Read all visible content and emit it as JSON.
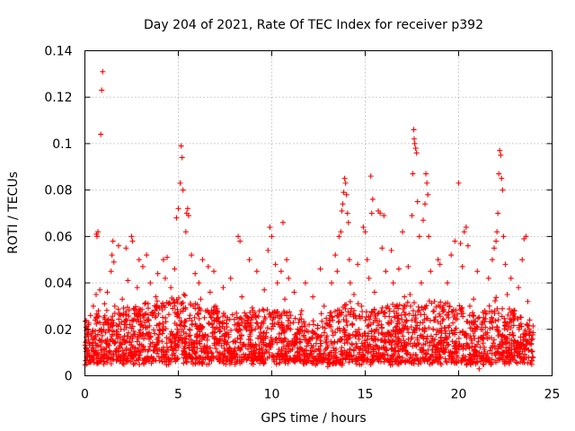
{
  "chart_data": {
    "type": "scatter",
    "title": "Day 204 of 2021, Rate Of TEC Index for receiver p392",
    "xlabel": "GPS time / hours",
    "ylabel": "ROTI / TECUs",
    "xlim": [
      0,
      25
    ],
    "ylim": [
      0,
      0.14
    ],
    "x_ticks": [
      0,
      5,
      10,
      15,
      20,
      25
    ],
    "x_tick_labels": [
      "0",
      "5",
      "10",
      "15",
      "20",
      "25"
    ],
    "y_ticks": [
      0,
      0.02,
      0.04,
      0.06,
      0.08,
      0.1,
      0.12,
      0.14
    ],
    "y_tick_labels": [
      "0",
      "0.02",
      "0.04",
      "0.06",
      "0.08",
      "0.1",
      "0.12",
      "0.14"
    ],
    "grid": true,
    "marker": "+",
    "color": "#ff0000",
    "series": [
      {
        "name": "ROTI",
        "points": [
          [
            0.05,
            0.012
          ],
          [
            0.1,
            0.018
          ],
          [
            0.15,
            0.009
          ],
          [
            0.2,
            0.022
          ],
          [
            0.25,
            0.014
          ],
          [
            0.3,
            0.026
          ],
          [
            0.35,
            0.011
          ],
          [
            0.4,
            0.019
          ],
          [
            0.45,
            0.03
          ],
          [
            0.5,
            0.016
          ],
          [
            0.55,
            0.024
          ],
          [
            0.6,
            0.035
          ],
          [
            0.62,
            0.061
          ],
          [
            0.65,
            0.06
          ],
          [
            0.7,
            0.062
          ],
          [
            0.72,
            0.028
          ],
          [
            0.8,
            0.037
          ],
          [
            0.85,
            0.104
          ],
          [
            0.9,
            0.123
          ],
          [
            0.95,
            0.131
          ],
          [
            1.0,
            0.022
          ],
          [
            1.05,
            0.031
          ],
          [
            1.1,
            0.015
          ],
          [
            1.2,
            0.036
          ],
          [
            1.25,
            0.02
          ],
          [
            1.3,
            0.013
          ],
          [
            1.4,
            0.045
          ],
          [
            1.45,
            0.052
          ],
          [
            1.5,
            0.058
          ],
          [
            1.55,
            0.049
          ],
          [
            1.6,
            0.03
          ],
          [
            1.7,
            0.018
          ],
          [
            1.8,
            0.056
          ],
          [
            1.85,
            0.027
          ],
          [
            1.9,
            0.012
          ],
          [
            2.0,
            0.033
          ],
          [
            2.1,
            0.02
          ],
          [
            2.2,
            0.055
          ],
          [
            2.3,
            0.041
          ],
          [
            2.4,
            0.016
          ],
          [
            2.5,
            0.06
          ],
          [
            2.55,
            0.058
          ],
          [
            2.6,
            0.029
          ],
          [
            2.7,
            0.012
          ],
          [
            2.8,
            0.038
          ],
          [
            2.9,
            0.05
          ],
          [
            3.0,
            0.022
          ],
          [
            3.1,
            0.047
          ],
          [
            3.2,
            0.031
          ],
          [
            3.3,
            0.052
          ],
          [
            3.4,
            0.018
          ],
          [
            3.5,
            0.04
          ],
          [
            3.6,
            0.026
          ],
          [
            3.7,
            0.011
          ],
          [
            3.8,
            0.034
          ],
          [
            3.9,
            0.044
          ],
          [
            4.0,
            0.02
          ],
          [
            4.1,
            0.03
          ],
          [
            4.2,
            0.05
          ],
          [
            4.3,
            0.042
          ],
          [
            4.4,
            0.051
          ],
          [
            4.5,
            0.016
          ],
          [
            4.6,
            0.038
          ],
          [
            4.7,
            0.029
          ],
          [
            4.8,
            0.046
          ],
          [
            4.9,
            0.068
          ],
          [
            5.0,
            0.072
          ],
          [
            5.05,
            0.025
          ],
          [
            5.1,
            0.083
          ],
          [
            5.15,
            0.099
          ],
          [
            5.2,
            0.094
          ],
          [
            5.25,
            0.08
          ],
          [
            5.3,
            0.035
          ],
          [
            5.4,
            0.062
          ],
          [
            5.45,
            0.07
          ],
          [
            5.5,
            0.072
          ],
          [
            5.55,
            0.069
          ],
          [
            5.6,
            0.02
          ],
          [
            5.7,
            0.052
          ],
          [
            5.8,
            0.03
          ],
          [
            5.9,
            0.044
          ],
          [
            6.0,
            0.018
          ],
          [
            6.1,
            0.04
          ],
          [
            6.2,
            0.033
          ],
          [
            6.3,
            0.05
          ],
          [
            6.4,
            0.025
          ],
          [
            6.5,
            0.012
          ],
          [
            6.6,
            0.047
          ],
          [
            6.7,
            0.036
          ],
          [
            6.8,
            0.022
          ],
          [
            6.9,
            0.045
          ],
          [
            7.0,
            0.03
          ],
          [
            7.2,
            0.015
          ],
          [
            7.4,
            0.038
          ],
          [
            7.6,
            0.024
          ],
          [
            7.8,
            0.042
          ],
          [
            8.0,
            0.011
          ],
          [
            8.2,
            0.06
          ],
          [
            8.3,
            0.058
          ],
          [
            8.4,
            0.034
          ],
          [
            8.6,
            0.021
          ],
          [
            8.8,
            0.05
          ],
          [
            9.0,
            0.028
          ],
          [
            9.2,
            0.045
          ],
          [
            9.4,
            0.016
          ],
          [
            9.6,
            0.037
          ],
          [
            9.8,
            0.054
          ],
          [
            9.9,
            0.064
          ],
          [
            10.0,
            0.06
          ],
          [
            10.1,
            0.025
          ],
          [
            10.2,
            0.048
          ],
          [
            10.3,
            0.04
          ],
          [
            10.4,
            0.018
          ],
          [
            10.5,
            0.045
          ],
          [
            10.6,
            0.066
          ],
          [
            10.7,
            0.033
          ],
          [
            10.8,
            0.05
          ],
          [
            10.9,
            0.042
          ],
          [
            11.0,
            0.02
          ],
          [
            11.2,
            0.036
          ],
          [
            11.4,
            0.012
          ],
          [
            11.6,
            0.028
          ],
          [
            11.8,
            0.04
          ],
          [
            12.0,
            0.022
          ],
          [
            12.2,
            0.034
          ],
          [
            12.4,
            0.016
          ],
          [
            12.6,
            0.046
          ],
          [
            12.8,
            0.03
          ],
          [
            13.0,
            0.013
          ],
          [
            13.2,
            0.04
          ],
          [
            13.4,
            0.052
          ],
          [
            13.5,
            0.045
          ],
          [
            13.6,
            0.06
          ],
          [
            13.7,
            0.062
          ],
          [
            13.75,
            0.071
          ],
          [
            13.8,
            0.074
          ],
          [
            13.85,
            0.079
          ],
          [
            13.9,
            0.085
          ],
          [
            13.95,
            0.083
          ],
          [
            14.0,
            0.078
          ],
          [
            14.05,
            0.07
          ],
          [
            14.1,
            0.066
          ],
          [
            14.15,
            0.05
          ],
          [
            14.2,
            0.04
          ],
          [
            14.3,
            0.022
          ],
          [
            14.4,
            0.035
          ],
          [
            14.5,
            0.012
          ],
          [
            14.6,
            0.048
          ],
          [
            14.8,
            0.03
          ],
          [
            14.9,
            0.064
          ],
          [
            15.0,
            0.062
          ],
          [
            15.1,
            0.05
          ],
          [
            15.2,
            0.042
          ],
          [
            15.3,
            0.086
          ],
          [
            15.35,
            0.07
          ],
          [
            15.4,
            0.076
          ],
          [
            15.5,
            0.036
          ],
          [
            15.6,
            0.02
          ],
          [
            15.7,
            0.071
          ],
          [
            15.8,
            0.07
          ],
          [
            15.9,
            0.055
          ],
          [
            16.0,
            0.069
          ],
          [
            16.1,
            0.045
          ],
          [
            16.2,
            0.03
          ],
          [
            16.4,
            0.054
          ],
          [
            16.5,
            0.04
          ],
          [
            16.6,
            0.018
          ],
          [
            16.8,
            0.046
          ],
          [
            17.0,
            0.062
          ],
          [
            17.1,
            0.034
          ],
          [
            17.2,
            0.024
          ],
          [
            17.3,
            0.047
          ],
          [
            17.4,
            0.035
          ],
          [
            17.5,
            0.069
          ],
          [
            17.55,
            0.087
          ],
          [
            17.6,
            0.106
          ],
          [
            17.62,
            0.102
          ],
          [
            17.65,
            0.1
          ],
          [
            17.7,
            0.098
          ],
          [
            17.75,
            0.096
          ],
          [
            17.8,
            0.075
          ],
          [
            17.9,
            0.06
          ],
          [
            18.0,
            0.04
          ],
          [
            18.1,
            0.067
          ],
          [
            18.2,
            0.074
          ],
          [
            18.25,
            0.087
          ],
          [
            18.3,
            0.083
          ],
          [
            18.35,
            0.078
          ],
          [
            18.4,
            0.06
          ],
          [
            18.5,
            0.045
          ],
          [
            18.7,
            0.032
          ],
          [
            18.9,
            0.05
          ],
          [
            19.0,
            0.048
          ],
          [
            19.2,
            0.028
          ],
          [
            19.4,
            0.04
          ],
          [
            19.6,
            0.052
          ],
          [
            19.8,
            0.058
          ],
          [
            20.0,
            0.083
          ],
          [
            20.1,
            0.057
          ],
          [
            20.2,
            0.047
          ],
          [
            20.3,
            0.062
          ],
          [
            20.4,
            0.064
          ],
          [
            20.5,
            0.056
          ],
          [
            20.6,
            0.03
          ],
          [
            20.8,
            0.033
          ],
          [
            21.0,
            0.045
          ],
          [
            21.2,
            0.02
          ],
          [
            21.4,
            0.028
          ],
          [
            21.6,
            0.042
          ],
          [
            21.8,
            0.05
          ],
          [
            21.9,
            0.055
          ],
          [
            22.0,
            0.058
          ],
          [
            22.05,
            0.062
          ],
          [
            22.1,
            0.07
          ],
          [
            22.15,
            0.087
          ],
          [
            22.2,
            0.097
          ],
          [
            22.25,
            0.095
          ],
          [
            22.3,
            0.085
          ],
          [
            22.35,
            0.08
          ],
          [
            22.4,
            0.06
          ],
          [
            22.5,
            0.048
          ],
          [
            22.6,
            0.035
          ],
          [
            22.8,
            0.042
          ],
          [
            23.0,
            0.028
          ],
          [
            23.2,
            0.038
          ],
          [
            23.4,
            0.05
          ],
          [
            23.5,
            0.059
          ],
          [
            23.6,
            0.06
          ],
          [
            23.7,
            0.032
          ],
          [
            23.8,
            0.024
          ],
          [
            23.9,
            0.016
          ],
          [
            0.3,
            0.008
          ],
          [
            1.5,
            0.007
          ],
          [
            2.7,
            0.009
          ],
          [
            4.2,
            0.008
          ],
          [
            6.3,
            0.006
          ],
          [
            8.5,
            0.007
          ],
          [
            10.3,
            0.008
          ],
          [
            12.1,
            0.006
          ],
          [
            13.0,
            0.004
          ],
          [
            15.1,
            0.007
          ],
          [
            16.6,
            0.006
          ],
          [
            19.0,
            0.008
          ],
          [
            21.1,
            0.003
          ],
          [
            21.3,
            0.005
          ],
          [
            22.9,
            0.007
          ],
          [
            23.3,
            0.006
          ]
        ],
        "dense_band": {
          "x_range": [
            0,
            24
          ],
          "typical_low": 0.006,
          "typical_high": 0.025,
          "envelope": [
            [
              0,
              0.025
            ],
            [
              2,
              0.03
            ],
            [
              4,
              0.032
            ],
            [
              5,
              0.036
            ],
            [
              6,
              0.03
            ],
            [
              8,
              0.028
            ],
            [
              10,
              0.03
            ],
            [
              12,
              0.024
            ],
            [
              13.5,
              0.028
            ],
            [
              14,
              0.034
            ],
            [
              15,
              0.028
            ],
            [
              16,
              0.03
            ],
            [
              17.5,
              0.032
            ],
            [
              19,
              0.032
            ],
            [
              20,
              0.03
            ],
            [
              21,
              0.026
            ],
            [
              22,
              0.034
            ],
            [
              23,
              0.028
            ],
            [
              24,
              0.022
            ]
          ]
        }
      }
    ]
  }
}
